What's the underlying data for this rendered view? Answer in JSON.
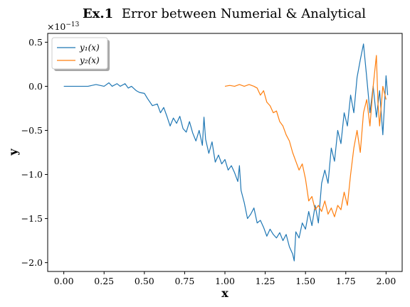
{
  "chart_data": {
    "type": "line",
    "title_bold": "Ex.1",
    "title_rest": "Error between Numerial & Analytical",
    "xlabel": "x",
    "ylabel": "y",
    "y_multiplier_base": "×10",
    "y_multiplier_exp": "−13",
    "xlim": [
      -0.1,
      2.1
    ],
    "ylim": [
      -2.1,
      0.6
    ],
    "x_ticks": [
      0.0,
      0.25,
      0.5,
      0.75,
      1.0,
      1.25,
      1.5,
      1.75,
      2.0
    ],
    "x_tick_labels": [
      "0.00",
      "0.25",
      "0.50",
      "0.75",
      "1.00",
      "1.25",
      "1.50",
      "1.75",
      "2.00"
    ],
    "y_ticks": [
      0.5,
      0.0,
      -0.5,
      -1.0,
      -1.5,
      -2.0
    ],
    "y_tick_labels": [
      "0.5",
      "0.0",
      "−0.5",
      "−1.0",
      "−1.5",
      "−2.0"
    ],
    "grid": false,
    "legend_position": "top-left",
    "series": [
      {
        "name": "y₁(x)",
        "color": "#1f77b4",
        "points": [
          [
            0.0,
            0.0
          ],
          [
            0.05,
            0.0
          ],
          [
            0.1,
            0.0
          ],
          [
            0.15,
            0.0
          ],
          [
            0.2,
            0.02
          ],
          [
            0.25,
            0.0
          ],
          [
            0.28,
            0.04
          ],
          [
            0.3,
            0.0
          ],
          [
            0.33,
            0.03
          ],
          [
            0.35,
            0.0
          ],
          [
            0.38,
            0.03
          ],
          [
            0.4,
            -0.02
          ],
          [
            0.42,
            0.0
          ],
          [
            0.45,
            -0.05
          ],
          [
            0.47,
            -0.07
          ],
          [
            0.5,
            -0.08
          ],
          [
            0.52,
            -0.14
          ],
          [
            0.55,
            -0.22
          ],
          [
            0.58,
            -0.2
          ],
          [
            0.6,
            -0.3
          ],
          [
            0.62,
            -0.24
          ],
          [
            0.64,
            -0.34
          ],
          [
            0.66,
            -0.45
          ],
          [
            0.68,
            -0.36
          ],
          [
            0.7,
            -0.42
          ],
          [
            0.72,
            -0.34
          ],
          [
            0.74,
            -0.48
          ],
          [
            0.76,
            -0.52
          ],
          [
            0.78,
            -0.4
          ],
          [
            0.8,
            -0.53
          ],
          [
            0.82,
            -0.62
          ],
          [
            0.84,
            -0.5
          ],
          [
            0.86,
            -0.67
          ],
          [
            0.87,
            -0.35
          ],
          [
            0.88,
            -0.6
          ],
          [
            0.9,
            -0.76
          ],
          [
            0.92,
            -0.63
          ],
          [
            0.94,
            -0.86
          ],
          [
            0.96,
            -0.78
          ],
          [
            0.98,
            -0.88
          ],
          [
            1.0,
            -0.83
          ],
          [
            1.02,
            -0.95
          ],
          [
            1.04,
            -0.9
          ],
          [
            1.06,
            -0.98
          ],
          [
            1.08,
            -1.08
          ],
          [
            1.09,
            -0.9
          ],
          [
            1.1,
            -1.18
          ],
          [
            1.12,
            -1.32
          ],
          [
            1.14,
            -1.5
          ],
          [
            1.16,
            -1.45
          ],
          [
            1.18,
            -1.38
          ],
          [
            1.2,
            -1.55
          ],
          [
            1.22,
            -1.52
          ],
          [
            1.24,
            -1.6
          ],
          [
            1.26,
            -1.7
          ],
          [
            1.28,
            -1.62
          ],
          [
            1.3,
            -1.68
          ],
          [
            1.32,
            -1.72
          ],
          [
            1.34,
            -1.66
          ],
          [
            1.36,
            -1.75
          ],
          [
            1.38,
            -1.68
          ],
          [
            1.4,
            -1.82
          ],
          [
            1.42,
            -1.9
          ],
          [
            1.43,
            -1.98
          ],
          [
            1.44,
            -1.65
          ],
          [
            1.46,
            -1.72
          ],
          [
            1.48,
            -1.55
          ],
          [
            1.5,
            -1.62
          ],
          [
            1.52,
            -1.42
          ],
          [
            1.54,
            -1.58
          ],
          [
            1.56,
            -1.35
          ],
          [
            1.58,
            -1.55
          ],
          [
            1.6,
            -1.1
          ],
          [
            1.62,
            -0.95
          ],
          [
            1.64,
            -1.1
          ],
          [
            1.66,
            -0.7
          ],
          [
            1.68,
            -0.85
          ],
          [
            1.7,
            -0.5
          ],
          [
            1.72,
            -0.65
          ],
          [
            1.74,
            -0.3
          ],
          [
            1.76,
            -0.45
          ],
          [
            1.78,
            -0.1
          ],
          [
            1.8,
            -0.3
          ],
          [
            1.82,
            0.1
          ],
          [
            1.84,
            0.3
          ],
          [
            1.86,
            0.48
          ],
          [
            1.88,
            0.1
          ],
          [
            1.9,
            -0.3
          ],
          [
            1.92,
            0.0
          ],
          [
            1.94,
            -0.35
          ],
          [
            1.96,
            -0.05
          ],
          [
            1.98,
            -0.55
          ],
          [
            2.0,
            0.12
          ],
          [
            2.01,
            -0.1
          ]
        ]
      },
      {
        "name": "y₂(x)",
        "color": "#ff7f0e",
        "points": [
          [
            1.0,
            0.0
          ],
          [
            1.03,
            0.01
          ],
          [
            1.06,
            0.0
          ],
          [
            1.09,
            0.02
          ],
          [
            1.12,
            0.0
          ],
          [
            1.15,
            0.02
          ],
          [
            1.18,
            0.0
          ],
          [
            1.2,
            -0.02
          ],
          [
            1.22,
            -0.1
          ],
          [
            1.24,
            -0.05
          ],
          [
            1.26,
            -0.18
          ],
          [
            1.28,
            -0.22
          ],
          [
            1.3,
            -0.3
          ],
          [
            1.32,
            -0.28
          ],
          [
            1.34,
            -0.4
          ],
          [
            1.36,
            -0.45
          ],
          [
            1.38,
            -0.55
          ],
          [
            1.4,
            -0.62
          ],
          [
            1.42,
            -0.75
          ],
          [
            1.44,
            -0.85
          ],
          [
            1.46,
            -0.95
          ],
          [
            1.48,
            -0.88
          ],
          [
            1.5,
            -1.05
          ],
          [
            1.52,
            -1.3
          ],
          [
            1.54,
            -1.25
          ],
          [
            1.56,
            -1.4
          ],
          [
            1.58,
            -1.35
          ],
          [
            1.6,
            -1.42
          ],
          [
            1.62,
            -1.3
          ],
          [
            1.64,
            -1.45
          ],
          [
            1.66,
            -1.38
          ],
          [
            1.68,
            -1.48
          ],
          [
            1.7,
            -1.35
          ],
          [
            1.72,
            -1.4
          ],
          [
            1.74,
            -1.2
          ],
          [
            1.76,
            -1.35
          ],
          [
            1.78,
            -1.0
          ],
          [
            1.8,
            -0.7
          ],
          [
            1.82,
            -0.5
          ],
          [
            1.84,
            -0.75
          ],
          [
            1.86,
            -0.3
          ],
          [
            1.88,
            -0.15
          ],
          [
            1.9,
            -0.45
          ],
          [
            1.92,
            0.0
          ],
          [
            1.94,
            0.35
          ],
          [
            1.95,
            -0.2
          ],
          [
            1.96,
            -0.45
          ],
          [
            1.98,
            0.0
          ],
          [
            2.0,
            -0.15
          ]
        ]
      }
    ]
  }
}
